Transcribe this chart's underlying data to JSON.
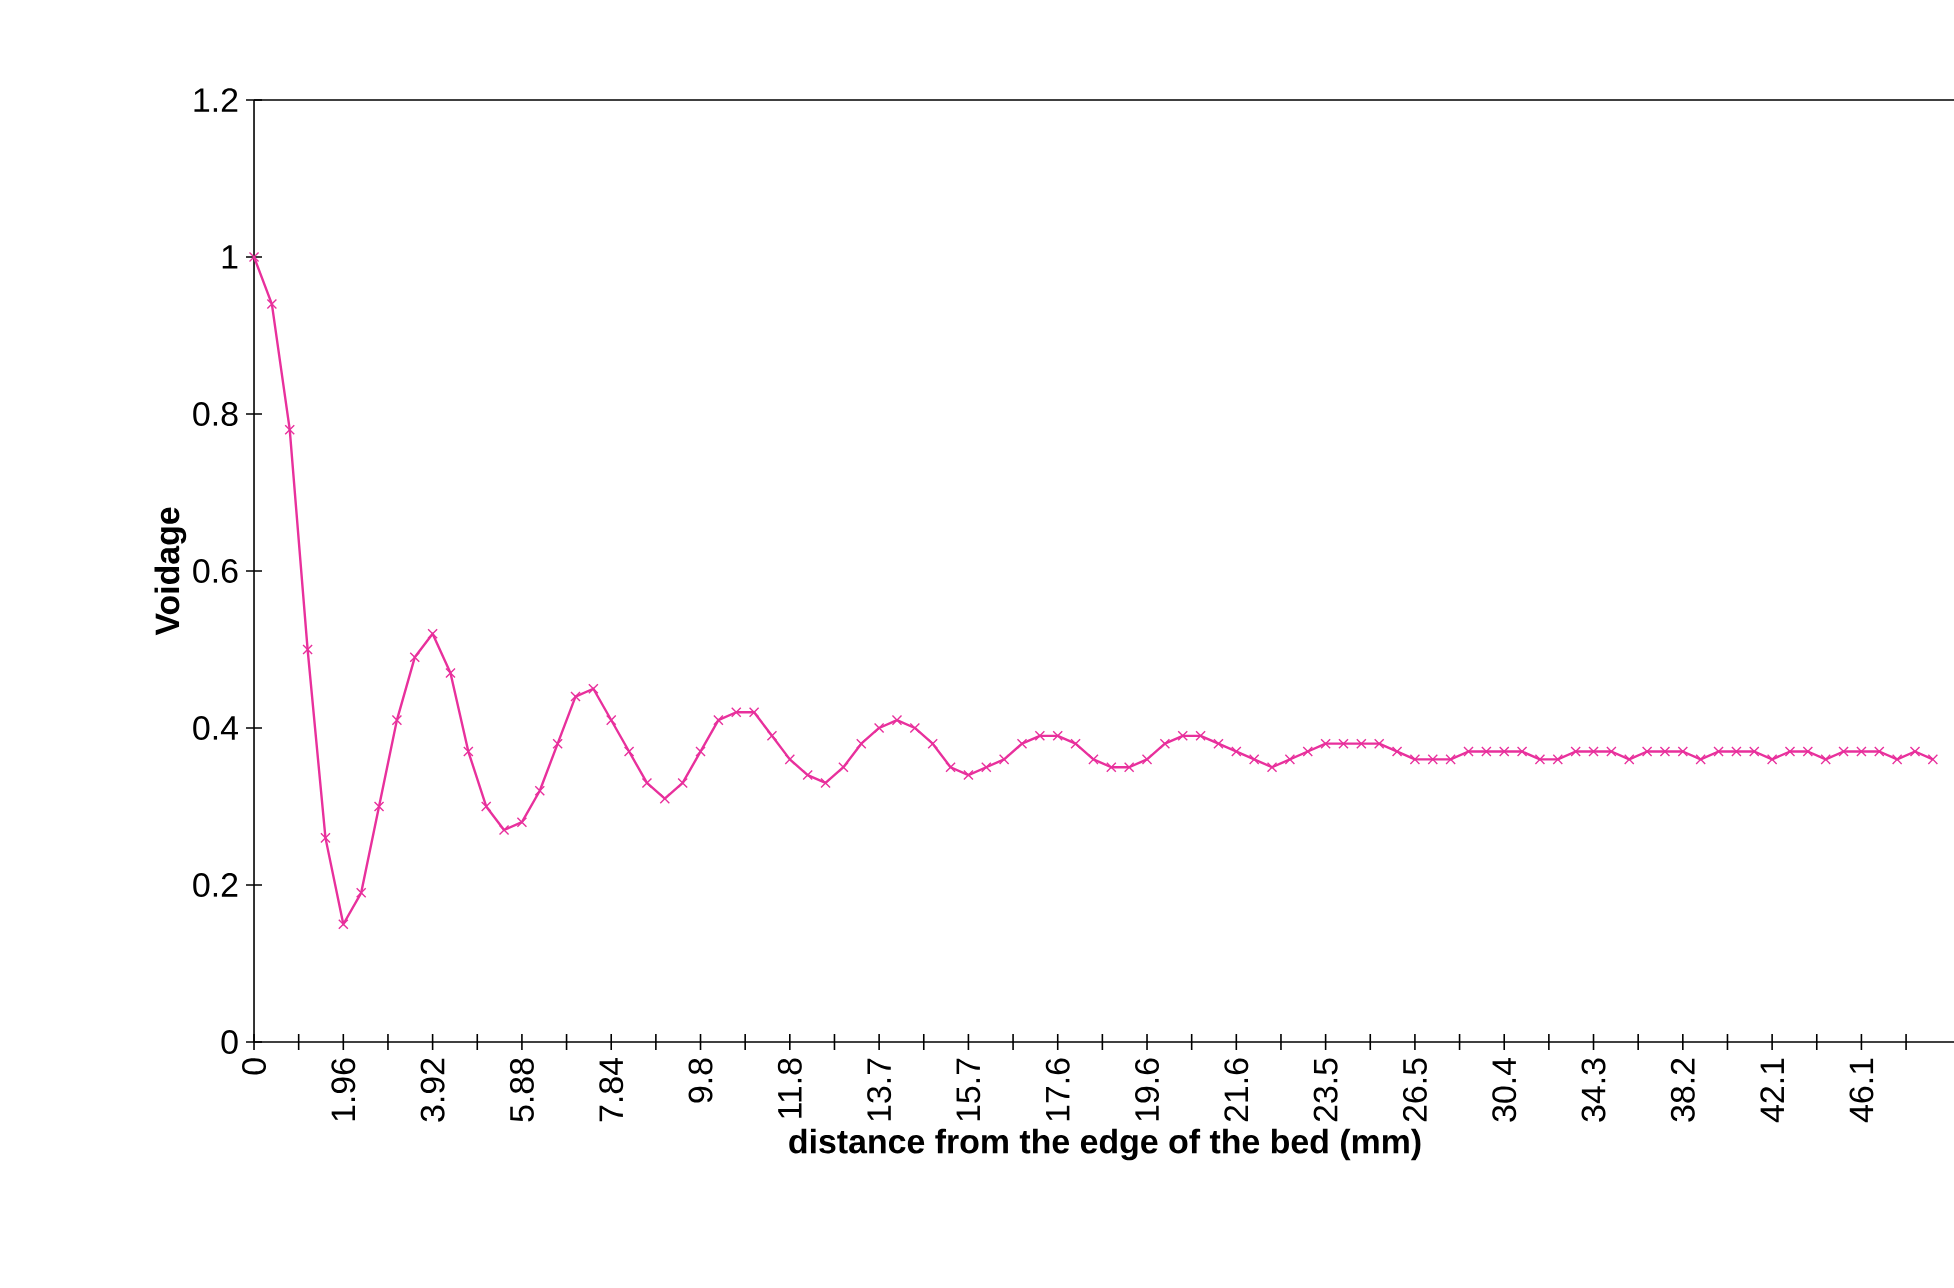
{
  "chart_data": {
    "type": "line",
    "xlabel": "distance from the edge of the bed (mm)",
    "ylabel": "Voidage",
    "categories": [
      "0",
      null,
      null,
      null,
      null,
      "1.96",
      null,
      null,
      null,
      null,
      "3.92",
      null,
      null,
      null,
      null,
      "5.88",
      null,
      null,
      null,
      null,
      "7.84",
      null,
      null,
      null,
      null,
      "9.8",
      null,
      null,
      null,
      null,
      "11.8",
      null,
      null,
      null,
      null,
      "13.7",
      null,
      null,
      null,
      null,
      "15.7",
      null,
      null,
      null,
      null,
      "17.6",
      null,
      null,
      null,
      null,
      "19.6",
      null,
      null,
      null,
      null,
      "21.6",
      null,
      null,
      null,
      null,
      "23.5",
      null,
      null,
      null,
      null,
      "26.5",
      null,
      null,
      null,
      null,
      "30.4",
      null,
      null,
      null,
      null,
      "34.3",
      null,
      null,
      null,
      null,
      "38.2",
      null,
      null,
      null,
      null,
      "42.1",
      null,
      null,
      null,
      null,
      "46.1",
      null,
      null,
      null,
      null
    ],
    "series": [
      {
        "color": "#e8309c",
        "values": [
          1.0,
          0.94,
          0.78,
          0.5,
          0.26,
          0.15,
          0.19,
          0.3,
          0.41,
          0.49,
          0.52,
          0.47,
          0.37,
          0.3,
          0.27,
          0.28,
          0.32,
          0.38,
          0.44,
          0.45,
          0.41,
          0.37,
          0.33,
          0.31,
          0.33,
          0.37,
          0.41,
          0.42,
          0.42,
          0.39,
          0.36,
          0.34,
          0.33,
          0.35,
          0.38,
          0.4,
          0.41,
          0.4,
          0.38,
          0.35,
          0.34,
          0.35,
          0.36,
          0.38,
          0.39,
          0.39,
          0.38,
          0.36,
          0.35,
          0.35,
          0.36,
          0.38,
          0.39,
          0.39,
          0.38,
          0.37,
          0.36,
          0.35,
          0.36,
          0.37,
          0.38,
          0.38,
          0.38,
          0.38,
          0.37,
          0.36,
          0.36,
          0.36,
          0.37,
          0.37,
          0.37,
          0.37,
          0.36,
          0.36,
          0.37,
          0.37,
          0.37,
          0.36,
          0.37,
          0.37,
          0.37,
          0.36,
          0.37,
          0.37,
          0.37,
          0.36,
          0.37,
          0.37,
          0.36,
          0.37,
          0.37,
          0.37,
          0.36,
          0.37,
          0.36
        ]
      }
    ],
    "ylim": [
      0,
      1.2
    ],
    "yticks": [
      0,
      0.2,
      0.4,
      0.6,
      0.8,
      1,
      1.2
    ],
    "marker": "cross",
    "line_style": "solid"
  }
}
